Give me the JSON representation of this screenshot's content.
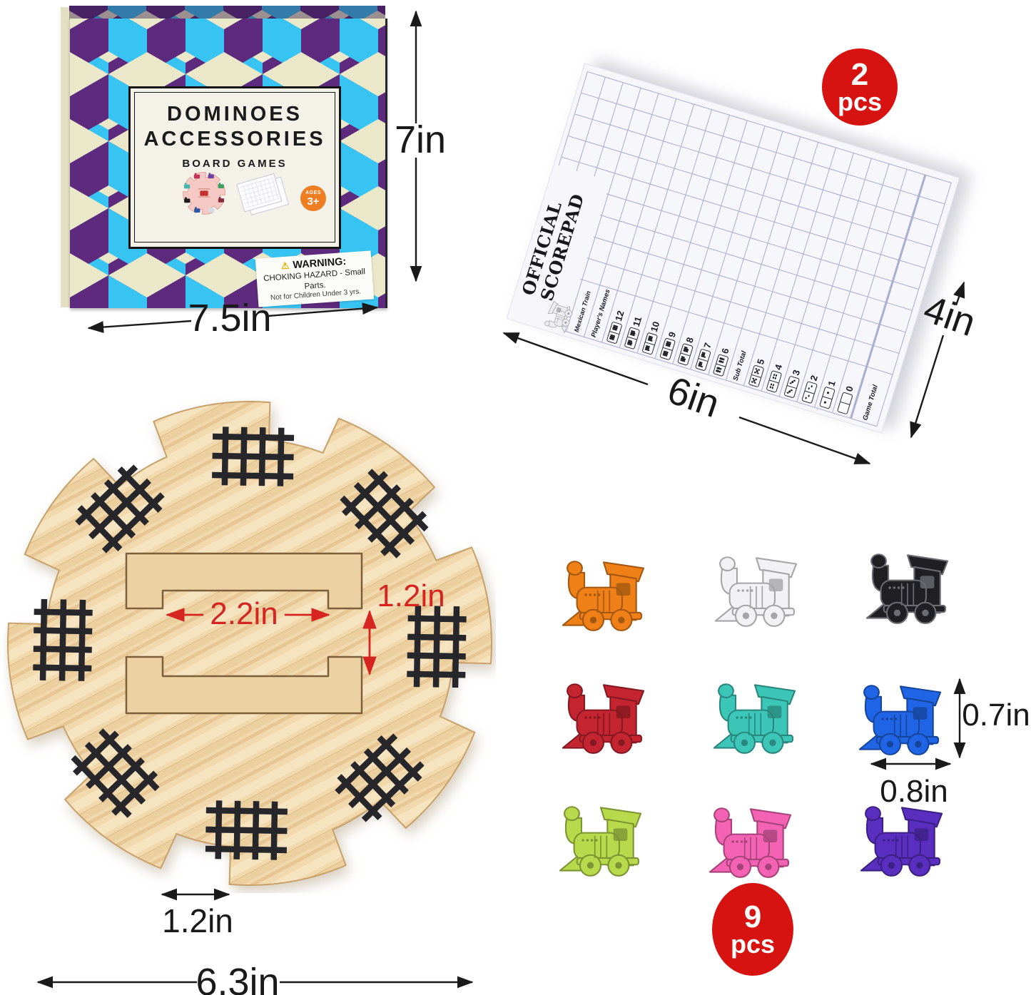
{
  "box": {
    "title_line1": "DOMINOES",
    "title_line2": "ACCESSORIES",
    "subtitle": "BOARD GAMES",
    "ages_badge": {
      "top": "AGES",
      "bottom": "3+"
    },
    "warning": {
      "title": "WARNING:",
      "line1": "CHOKING HAZARD - Small Parts.",
      "line2": "Not for Children Under 3 yrs."
    },
    "pattern_colors": {
      "cyan": "#38c4f2",
      "purple": "#5e2a7e",
      "cream": "#ebe7c9"
    }
  },
  "scorepad": {
    "title_line1": "OFFICIAL",
    "title_line2": "SCOREPAD",
    "brand": "Mexican Train",
    "rows": [
      {
        "label": "Mexican Train",
        "type": "brand"
      },
      {
        "label": "Player's Names",
        "type": "txt"
      },
      {
        "label": "12",
        "pips": 12
      },
      {
        "label": "11",
        "pips": 11
      },
      {
        "label": "10",
        "pips": 10
      },
      {
        "label": "9",
        "pips": 9
      },
      {
        "label": "8",
        "pips": 8
      },
      {
        "label": "7",
        "pips": 7
      },
      {
        "label": "6",
        "pips": 6
      },
      {
        "label": "Sub Total",
        "type": "txt"
      },
      {
        "label": "5",
        "pips": 5
      },
      {
        "label": "4",
        "pips": 4
      },
      {
        "label": "3",
        "pips": 3
      },
      {
        "label": "2",
        "pips": 2
      },
      {
        "label": "1",
        "pips": 1
      },
      {
        "label": "0",
        "pips": 0
      },
      {
        "label": "Game Total",
        "type": "txt"
      }
    ],
    "badge": {
      "count": "2",
      "unit": "pcs"
    }
  },
  "trains": {
    "badge": {
      "count": "9",
      "unit": "pcs"
    },
    "items": [
      {
        "name": "orange",
        "color": "#ef8018"
      },
      {
        "name": "white",
        "color": "#f2f2f5"
      },
      {
        "name": "black",
        "color": "#202024"
      },
      {
        "name": "red",
        "color": "#c42531"
      },
      {
        "name": "teal",
        "color": "#3cc6b8"
      },
      {
        "name": "blue",
        "color": "#2065e6"
      },
      {
        "name": "green",
        "color": "#b7d94b"
      },
      {
        "name": "pink",
        "color": "#f463b3"
      },
      {
        "name": "purple",
        "color": "#5a2fc0"
      }
    ]
  },
  "dimensions": {
    "box_height": "7in",
    "box_width": "7.5in",
    "pad_length": "6in",
    "pad_width": "4in",
    "handle_width": "2.2in",
    "handle_gap": "1.2in",
    "notch_width": "1.2in",
    "hub_width": "6.3in",
    "train_height": "0.7in",
    "train_width": "0.8in"
  },
  "colors": {
    "badge_red": "#d61310",
    "dimension_red": "#d62420",
    "wood": "#f2d9ad"
  }
}
